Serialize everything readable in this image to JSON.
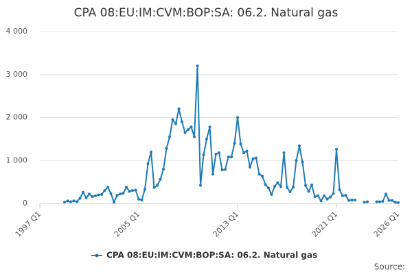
{
  "chart_data": {
    "type": "line",
    "title": "CPA 08:EU:IM:CVM:BOP:SA: 06.2. Natural gas",
    "source": "Source:",
    "categories": [
      "1997 Q1",
      null,
      null,
      null,
      null,
      null,
      null,
      null,
      null,
      null,
      null,
      null,
      null,
      null,
      null,
      null,
      null,
      null,
      null,
      null,
      null,
      null,
      null,
      null,
      null,
      null,
      null,
      null,
      null,
      null,
      null,
      null,
      "2005 Q1",
      null,
      null,
      null,
      null,
      null,
      null,
      null,
      null,
      null,
      null,
      null,
      null,
      null,
      null,
      null,
      null,
      null,
      null,
      null,
      null,
      null,
      null,
      null,
      null,
      null,
      null,
      null,
      null,
      null,
      null,
      null,
      "2013 Q1",
      null,
      null,
      null,
      null,
      null,
      null,
      null,
      null,
      null,
      null,
      null,
      null,
      null,
      null,
      null,
      null,
      null,
      null,
      null,
      null,
      null,
      null,
      null,
      null,
      null,
      null,
      null,
      null,
      null,
      null,
      null,
      "2021 Q1",
      null,
      null,
      null,
      null,
      null,
      null,
      null,
      null,
      null,
      null,
      null,
      null,
      null,
      null,
      null,
      null,
      null,
      null,
      null,
      "2026 Q1"
    ],
    "series": [
      {
        "name": "CPA 08:EU:IM:CVM:BOP:SA: 06.2. Natural gas",
        "color": "#1f7bb6",
        "values": [
          null,
          null,
          null,
          null,
          null,
          null,
          null,
          null,
          30,
          60,
          40,
          60,
          40,
          120,
          260,
          130,
          220,
          160,
          180,
          200,
          210,
          300,
          380,
          230,
          30,
          190,
          220,
          240,
          380,
          280,
          300,
          310,
          100,
          80,
          330,
          920,
          1200,
          370,
          420,
          560,
          800,
          1280,
          1550,
          1950,
          1850,
          2200,
          1900,
          1650,
          1720,
          1780,
          1550,
          3200,
          420,
          1130,
          1500,
          1780,
          680,
          1150,
          1180,
          780,
          790,
          1080,
          1080,
          1400,
          2000,
          1380,
          1180,
          1220,
          850,
          1040,
          1060,
          680,
          640,
          440,
          360,
          210,
          400,
          480,
          390,
          1180,
          370,
          270,
          380,
          1000,
          1340,
          960,
          420,
          280,
          430,
          160,
          180,
          60,
          180,
          100,
          150,
          230,
          1260,
          320,
          180,
          190,
          70,
          80,
          80,
          null,
          null,
          30,
          40,
          null,
          null,
          40,
          40,
          50,
          220,
          70,
          70,
          30,
          20
        ]
      }
    ],
    "ylim": [
      0,
      4000
    ],
    "yticks": [
      0,
      {
        "value": 1000,
        "label": "1 000"
      },
      {
        "value": 2000,
        "label": "2 000"
      },
      {
        "value": 3000,
        "label": "3 000"
      },
      {
        "value": 4000,
        "label": "4 000"
      }
    ],
    "grid": true
  }
}
